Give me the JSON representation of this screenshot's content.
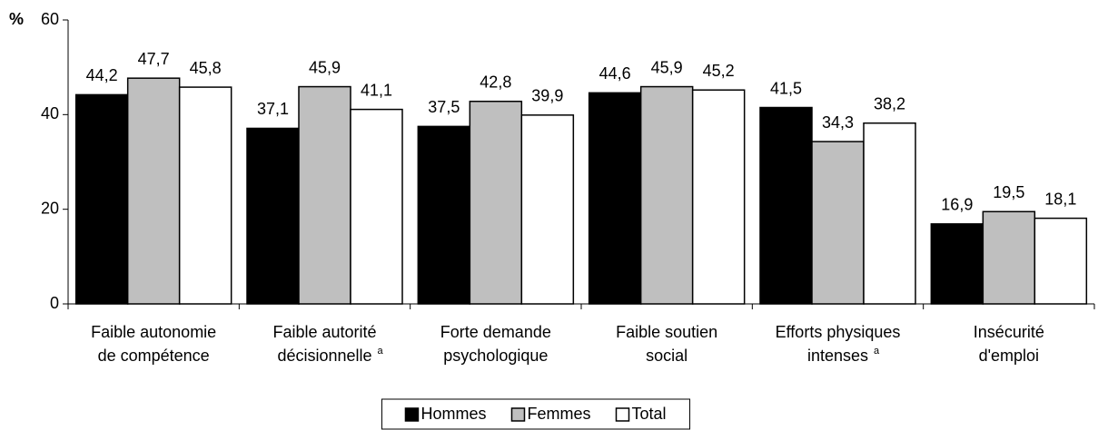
{
  "chart_data": {
    "type": "bar",
    "y_label": "%",
    "categories": [
      [
        "Faible autonomie",
        "de compétence"
      ],
      [
        "Faible autorité",
        "décisionnelle"
      ],
      [
        "Forte demande",
        "psychologique"
      ],
      [
        "Faible soutien",
        "social"
      ],
      [
        "Efforts physiques",
        "intenses"
      ],
      [
        "Insécurité",
        "d'emploi"
      ]
    ],
    "category_notes": [
      null,
      "a",
      null,
      null,
      "a",
      null
    ],
    "series": [
      {
        "name": "Hommes",
        "color": "#000000",
        "values": [
          44.2,
          37.1,
          37.5,
          44.6,
          41.5,
          16.9
        ],
        "value_labels": [
          "44,2",
          "37,1",
          "37,5",
          "44,6",
          "41,5",
          "16,9"
        ]
      },
      {
        "name": "Femmes",
        "color": "#bfbfbf",
        "values": [
          47.7,
          45.9,
          42.8,
          45.9,
          34.3,
          19.5
        ],
        "value_labels": [
          "47,7",
          "45,9",
          "42,8",
          "45,9",
          "34,3",
          "19,5"
        ]
      },
      {
        "name": "Total",
        "color": "#ffffff",
        "values": [
          45.8,
          41.1,
          39.9,
          45.2,
          38.2,
          18.1
        ],
        "value_labels": [
          "45,8",
          "41,1",
          "39,9",
          "45,2",
          "38,2",
          "18,1"
        ]
      }
    ],
    "ylim": [
      0,
      60
    ],
    "yticks": [
      0,
      20,
      40,
      60
    ],
    "grid": false,
    "legend": "bottom"
  }
}
